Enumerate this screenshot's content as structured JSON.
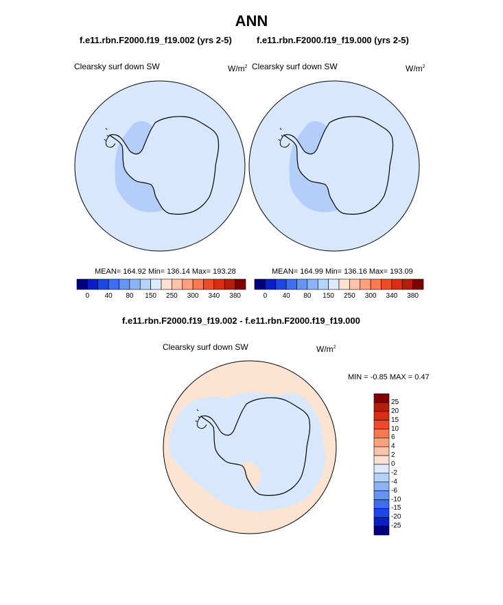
{
  "main_title": "ANN",
  "panel_left": {
    "case": "f.e11.rbn.F2000.f19_f19.002 (yrs 2-5)",
    "variable": "Clearsky surf down SW",
    "units": "W/m",
    "units_exp": "2",
    "stats": "MEAN= 164.92  Min= 136.14  Max= 193.28"
  },
  "panel_right": {
    "case": "f.e11.rbn.F2000.f19_f19.000 (yrs 2-5)",
    "variable": "Clearsky surf down SW",
    "units": "W/m",
    "units_exp": "2",
    "stats": "MEAN= 164.99  Min= 136.16  Max= 193.09"
  },
  "colorbar_top": {
    "colors": [
      "#00007f",
      "#0a1ec8",
      "#1e46e6",
      "#3c6ef0",
      "#6496f0",
      "#8cb4f5",
      "#b4d2fa",
      "#dcebff",
      "#ffe1d2",
      "#ffc3aa",
      "#ffa07d",
      "#ff7850",
      "#f04b28",
      "#dc2d14",
      "#b41e0a",
      "#800000"
    ],
    "labels": [
      "0",
      "40",
      "80",
      "150",
      "250",
      "300",
      "340",
      "380"
    ]
  },
  "diff_panel": {
    "case": "f.e11.rbn.F2000.f19_f19.002 - f.e11.rbn.F2000.f19_f19.000",
    "variable": "Clearsky surf down SW",
    "units": "W/m",
    "units_exp": "2",
    "minmax": "MIN =  -0.85 MAX =   0.47"
  },
  "colorbar_diff": {
    "colors": [
      "#800000",
      "#b41e0a",
      "#dc2d14",
      "#f04b28",
      "#ff7850",
      "#ffa07d",
      "#ffc3aa",
      "#ffe1d2",
      "#dcebff",
      "#b4d2fa",
      "#8cb4f5",
      "#6496f0",
      "#3c6ef0",
      "#1e46e6",
      "#0a1ec8",
      "#00007f"
    ],
    "labels": [
      "25",
      "20",
      "15",
      "10",
      "6",
      "4",
      "2",
      "0",
      "-2",
      "-4",
      "-6",
      "-10",
      "-15",
      "-20",
      "-25"
    ]
  },
  "map_colors": {
    "ocean_light": "#d7e8fc",
    "antarctic_mid": "#b4cdfa",
    "diff_pos": "#fde3d1",
    "diff_neg": "#d8e8fc"
  }
}
